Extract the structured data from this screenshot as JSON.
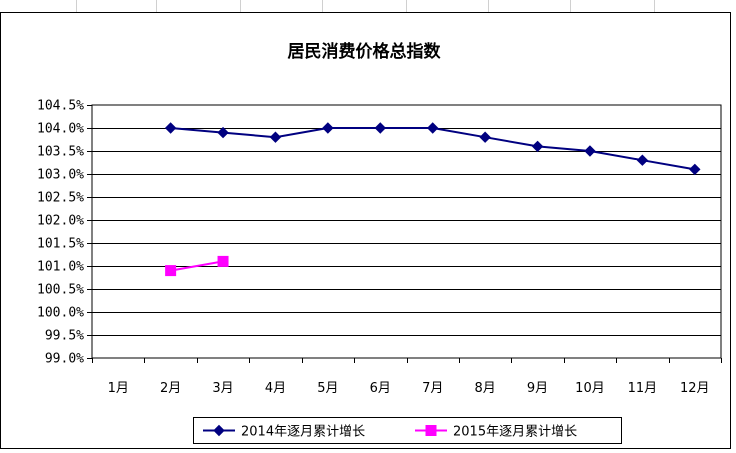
{
  "chart_data": {
    "type": "line",
    "title": "居民消费价格总指数",
    "xlabel": "",
    "ylabel": "",
    "categories": [
      "1月",
      "2月",
      "3月",
      "4月",
      "5月",
      "6月",
      "7月",
      "8月",
      "9月",
      "10月",
      "11月",
      "12月"
    ],
    "ylim": [
      99.0,
      104.5
    ],
    "yticks": [
      "99.0%",
      "99.5%",
      "100.0%",
      "100.5%",
      "101.0%",
      "101.5%",
      "102.0%",
      "102.5%",
      "103.0%",
      "103.5%",
      "104.0%",
      "104.5%"
    ],
    "grid": true,
    "legend_position": "bottom",
    "series": [
      {
        "name": "2014年逐月累计增长",
        "color": "#000080",
        "marker": "diamond",
        "values": [
          null,
          104.0,
          103.9,
          103.8,
          104.0,
          104.0,
          104.0,
          103.8,
          103.6,
          103.5,
          103.3,
          103.1
        ]
      },
      {
        "name": "2015年逐月累计增长",
        "color": "#FF00FF",
        "marker": "square",
        "values": [
          null,
          100.9,
          101.1,
          null,
          null,
          null,
          null,
          null,
          null,
          null,
          null,
          null
        ]
      }
    ]
  }
}
